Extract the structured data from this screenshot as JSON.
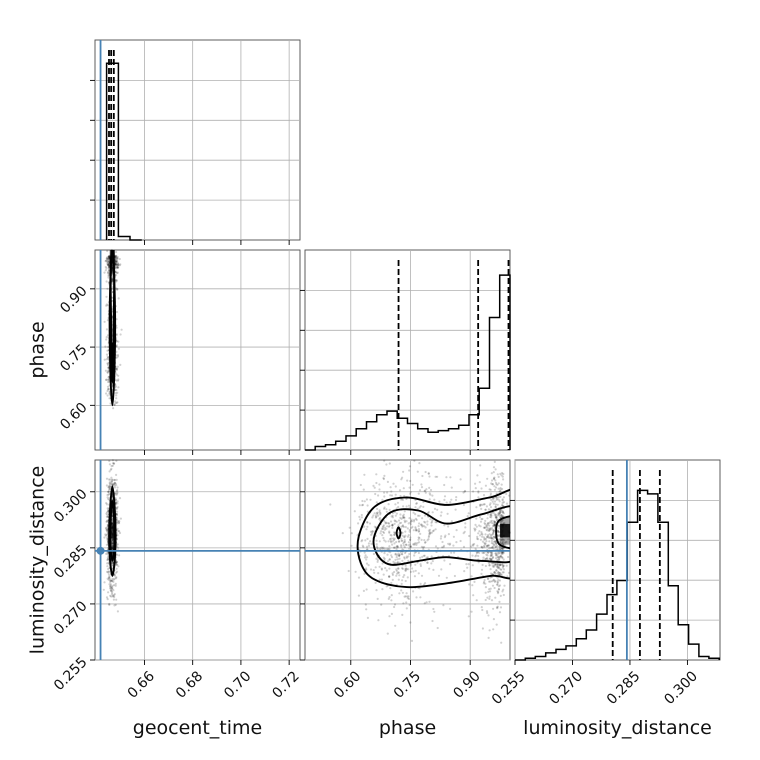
{
  "figure": {
    "type": "corner-plot",
    "truth_color": "#4682b4",
    "line_color": "#000000",
    "grid": true
  },
  "chart_data": {
    "type": "corner",
    "parameters": [
      "geocent_time",
      "phase",
      "luminosity_distance"
    ],
    "axis_ranges": {
      "geocent_time": [
        0.6395,
        0.7245
      ],
      "phase": [
        0.485,
        1.0
      ],
      "luminosity_distance": [
        0.255,
        0.3085
      ]
    },
    "ticks": {
      "geocent_time": [
        "0.66",
        "0.68",
        "0.70",
        "0.72"
      ],
      "phase": [
        "0.60",
        "0.75",
        "0.90"
      ],
      "luminosity_distance": [
        "0.255",
        "0.270",
        "0.285",
        "0.300"
      ]
    },
    "tick_values": {
      "geocent_time": [
        0.66,
        0.68,
        0.7,
        0.72
      ],
      "phase": [
        0.6,
        0.75,
        0.9
      ],
      "luminosity_distance": [
        0.255,
        0.27,
        0.285,
        0.3
      ]
    },
    "truths": {
      "geocent_time": 0.6418,
      "luminosity_distance": 0.2842
    },
    "quantiles": {
      "geocent_time": [
        0.6453,
        0.6462,
        0.6473
      ],
      "phase": [
        0.72,
        0.92,
        0.998
      ],
      "luminosity_distance": [
        0.2805,
        0.2876,
        0.2928
      ]
    },
    "histograms": {
      "geocent_time": {
        "bin_edges": [
          0.6443,
          0.6492,
          0.654,
          0.6589
        ],
        "counts": [
          1.0,
          0.02,
          0.0
        ]
      },
      "phase": {
        "bin_edges": [
          0.485,
          0.5107,
          0.5365,
          0.5622,
          0.588,
          0.6137,
          0.6395,
          0.6652,
          0.691,
          0.7167,
          0.7425,
          0.7682,
          0.794,
          0.8197,
          0.8455,
          0.8712,
          0.897,
          0.9227,
          0.9485,
          0.9742,
          1.0
        ],
        "counts": [
          0.0,
          0.02,
          0.03,
          0.05,
          0.08,
          0.12,
          0.16,
          0.2,
          0.22,
          0.18,
          0.15,
          0.12,
          0.1,
          0.11,
          0.12,
          0.14,
          0.2,
          0.35,
          0.75,
          0.99
        ]
      },
      "luminosity_distance": {
        "bin_edges": [
          0.255,
          0.2577,
          0.2603,
          0.263,
          0.2657,
          0.2683,
          0.271,
          0.2736,
          0.2763,
          0.279,
          0.2816,
          0.2843,
          0.287,
          0.2896,
          0.2923,
          0.295,
          0.2976,
          0.3003,
          0.303,
          0.3056,
          0.3083
        ],
        "counts": [
          0.0,
          0.01,
          0.02,
          0.04,
          0.06,
          0.08,
          0.12,
          0.17,
          0.26,
          0.37,
          0.45,
          0.78,
          0.96,
          0.94,
          0.78,
          0.42,
          0.2,
          0.09,
          0.02,
          0.01
        ]
      }
    },
    "mode_2d": {
      "phase_vs_geocent_time": {
        "x": 0.6467,
        "y": [
          0.72,
          0.99
        ]
      },
      "luminosity_distance_vs_geocent_time": {
        "x": 0.6467,
        "y": 0.2896
      },
      "luminosity_distance_vs_phase": {
        "x": [
          0.72,
          0.99
        ],
        "y": 0.2896
      }
    }
  }
}
